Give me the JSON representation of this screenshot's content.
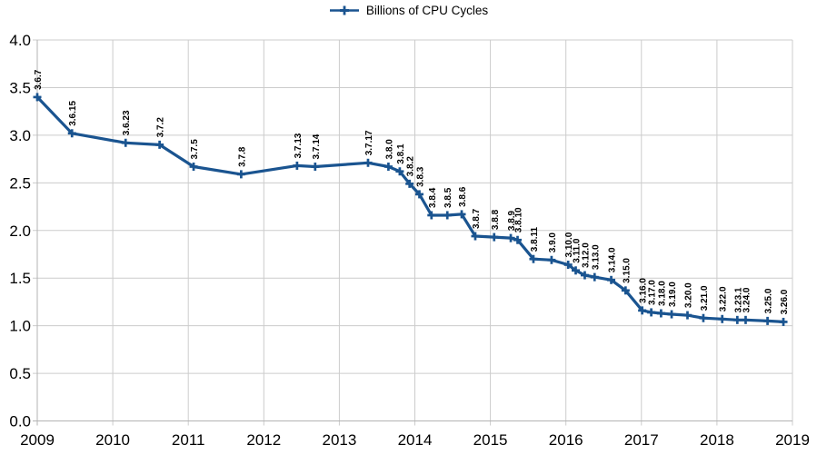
{
  "legend": {
    "label": "Billions of CPU Cycles"
  },
  "colors": {
    "series": "#1a5490",
    "grid": "#cccccc",
    "axis": "#b3b3b3",
    "text": "#000000",
    "background": "#ffffff"
  },
  "chart_data": {
    "type": "line",
    "title": "",
    "series_name": "Billions of CPU Cycles",
    "legend_position": "top-center",
    "grid": true,
    "marker": "plus",
    "xlabel": "",
    "ylabel": "",
    "x_axis": {
      "min": 2009,
      "max": 2019,
      "tick_labels": [
        "2009",
        "2010",
        "2011",
        "2012",
        "2013",
        "2014",
        "2015",
        "2016",
        "2017",
        "2018",
        "2019"
      ]
    },
    "y_axis": {
      "min": 0.0,
      "max": 4.0,
      "tick_step": 0.5,
      "tick_labels": [
        "0.0",
        "0.5",
        "1.0",
        "1.5",
        "2.0",
        "2.5",
        "3.0",
        "3.5",
        "4.0"
      ]
    },
    "points": [
      {
        "label": "3.6.7",
        "x": 2009.0,
        "y": 3.4
      },
      {
        "label": "3.6.15",
        "x": 2009.46,
        "y": 3.02
      },
      {
        "label": "3.6.23",
        "x": 2010.17,
        "y": 2.92
      },
      {
        "label": "3.7.2",
        "x": 2010.62,
        "y": 2.9
      },
      {
        "label": "3.7.5",
        "x": 2011.07,
        "y": 2.67
      },
      {
        "label": "3.7.8",
        "x": 2011.7,
        "y": 2.59
      },
      {
        "label": "3.7.13",
        "x": 2012.44,
        "y": 2.68
      },
      {
        "label": "3.7.14",
        "x": 2012.68,
        "y": 2.67
      },
      {
        "label": "3.7.17",
        "x": 2013.38,
        "y": 2.71
      },
      {
        "label": "3.8.0",
        "x": 2013.65,
        "y": 2.67
      },
      {
        "label": "3.8.1",
        "x": 2013.8,
        "y": 2.62
      },
      {
        "label": "3.8.2",
        "x": 2013.93,
        "y": 2.49
      },
      {
        "label": "3.8.3",
        "x": 2014.06,
        "y": 2.38
      },
      {
        "label": "3.8.4",
        "x": 2014.22,
        "y": 2.16
      },
      {
        "label": "3.8.5",
        "x": 2014.43,
        "y": 2.16
      },
      {
        "label": "3.8.6",
        "x": 2014.62,
        "y": 2.17
      },
      {
        "label": "3.8.7",
        "x": 2014.8,
        "y": 1.94
      },
      {
        "label": "3.8.8",
        "x": 2015.05,
        "y": 1.93
      },
      {
        "label": "3.8.9",
        "x": 2015.27,
        "y": 1.92
      },
      {
        "label": "3.8.10",
        "x": 2015.36,
        "y": 1.9
      },
      {
        "label": "3.8.11",
        "x": 2015.57,
        "y": 1.7
      },
      {
        "label": "3.9.0",
        "x": 2015.81,
        "y": 1.69
      },
      {
        "label": "3.10.0",
        "x": 2016.03,
        "y": 1.64
      },
      {
        "label": "3.11.0",
        "x": 2016.13,
        "y": 1.58
      },
      {
        "label": "3.12.0",
        "x": 2016.25,
        "y": 1.53
      },
      {
        "label": "3.13.0",
        "x": 2016.38,
        "y": 1.51
      },
      {
        "label": "3.14.0",
        "x": 2016.6,
        "y": 1.48
      },
      {
        "label": "3.15.0",
        "x": 2016.79,
        "y": 1.37
      },
      {
        "label": "3.16.0",
        "x": 2017.01,
        "y": 1.16
      },
      {
        "label": "3.17.0",
        "x": 2017.13,
        "y": 1.14
      },
      {
        "label": "3.18.0",
        "x": 2017.26,
        "y": 1.13
      },
      {
        "label": "3.19.0",
        "x": 2017.4,
        "y": 1.12
      },
      {
        "label": "3.20.0",
        "x": 2017.61,
        "y": 1.11
      },
      {
        "label": "3.21.0",
        "x": 2017.82,
        "y": 1.08
      },
      {
        "label": "3.22.0",
        "x": 2018.07,
        "y": 1.07
      },
      {
        "label": "3.23.1",
        "x": 2018.27,
        "y": 1.06
      },
      {
        "label": "3.24.0",
        "x": 2018.38,
        "y": 1.06
      },
      {
        "label": "3.25.0",
        "x": 2018.67,
        "y": 1.05
      },
      {
        "label": "3.26.0",
        "x": 2018.88,
        "y": 1.04
      }
    ]
  }
}
